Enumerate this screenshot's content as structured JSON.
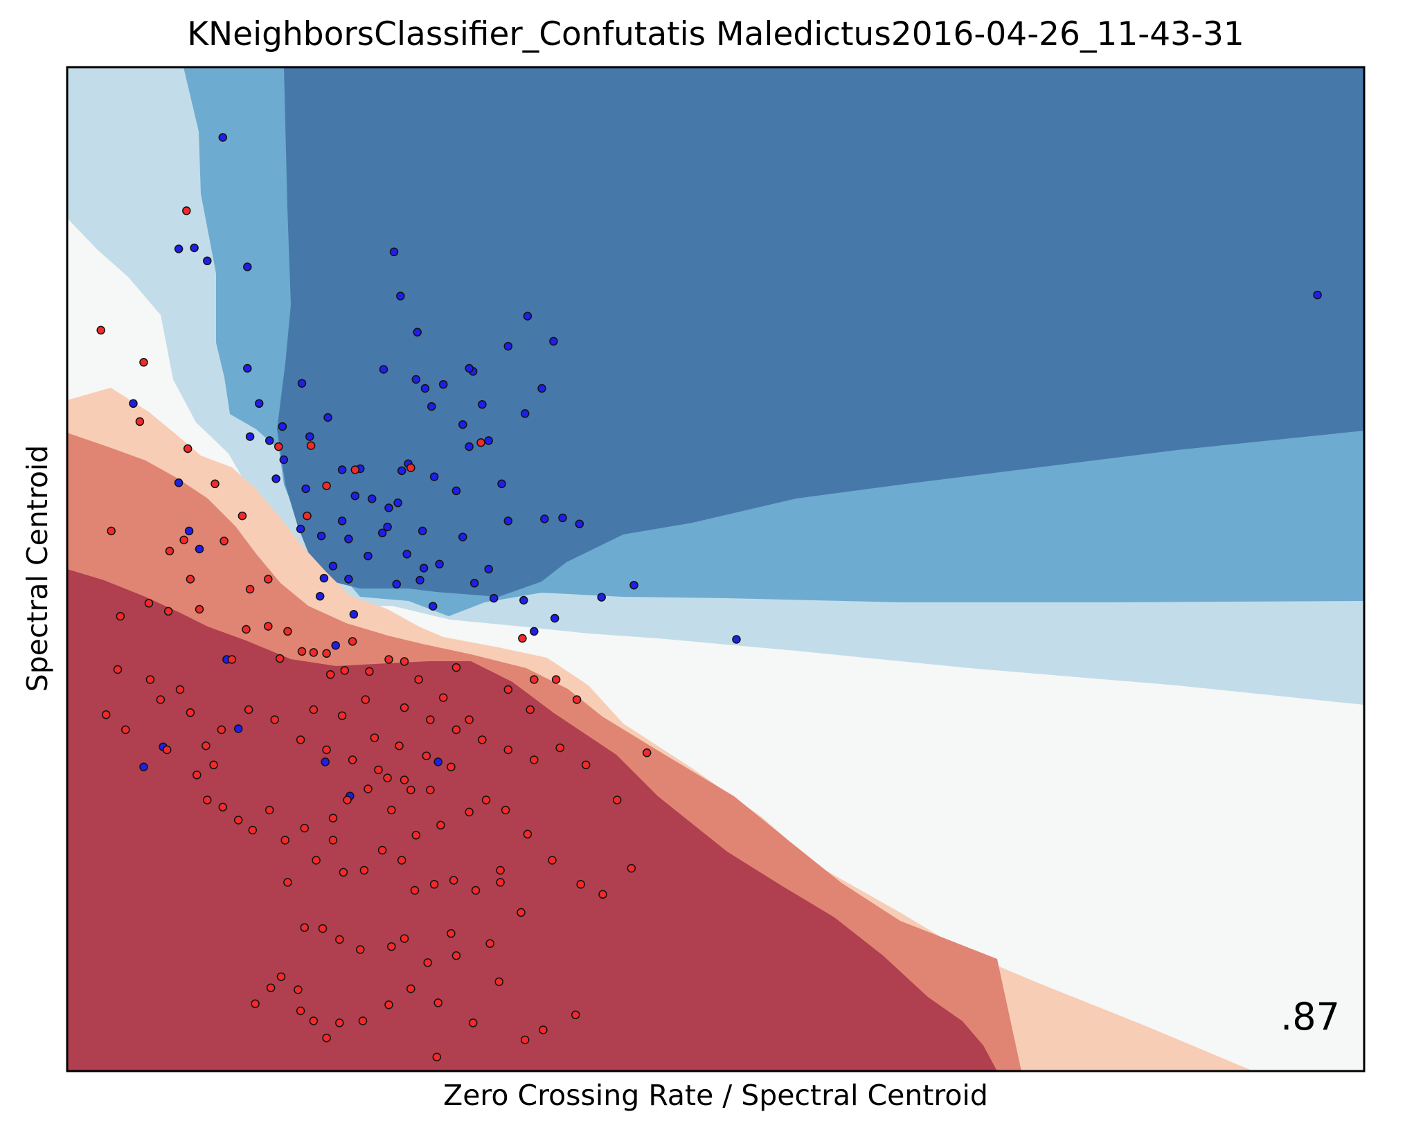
{
  "chart_data": {
    "type": "scatter",
    "title": "KNeighborsClassifier_Confutatis Maledictus2016-04-26_11-43-31",
    "xlabel": "Zero Crossing Rate / Spectral Centroid",
    "ylabel": "Spectral Centroid",
    "score_label": ".87",
    "xlim": [
      0,
      1
    ],
    "ylim": [
      0,
      1
    ],
    "grid": false,
    "ticks_shown": false,
    "background": "decision-surface",
    "colors": {
      "blue_dark": "#4679aa",
      "blue_mid": "#6eabd0",
      "blue_light": "#c2dde9",
      "neutral": "#f6f7f7",
      "red_light": "#f8cdb6",
      "red_mid": "#e08573",
      "red_dark": "#b03f50",
      "point_blue": "#1f1fe8",
      "point_red": "#f22a2a"
    },
    "series": [
      {
        "color": "blue",
        "points": [
          [
            0.12,
            0.93
          ],
          [
            0.086,
            0.819
          ],
          [
            0.098,
            0.82
          ],
          [
            0.108,
            0.807
          ],
          [
            0.139,
            0.801
          ],
          [
            0.252,
            0.816
          ],
          [
            0.257,
            0.772
          ],
          [
            0.181,
            0.685
          ],
          [
            0.148,
            0.665
          ],
          [
            0.139,
            0.7
          ],
          [
            0.141,
            0.632
          ],
          [
            0.051,
            0.665
          ],
          [
            0.166,
            0.642
          ],
          [
            0.187,
            0.632
          ],
          [
            0.201,
            0.651
          ],
          [
            0.244,
            0.699
          ],
          [
            0.269,
            0.689
          ],
          [
            0.29,
            0.684
          ],
          [
            0.276,
            0.68
          ],
          [
            0.313,
            0.697
          ],
          [
            0.27,
            0.736
          ],
          [
            0.355,
            0.752
          ],
          [
            0.34,
            0.722
          ],
          [
            0.31,
            0.7
          ],
          [
            0.375,
            0.727
          ],
          [
            0.32,
            0.664
          ],
          [
            0.305,
            0.644
          ],
          [
            0.353,
            0.655
          ],
          [
            0.366,
            0.68
          ],
          [
            0.281,
            0.662
          ],
          [
            0.263,
            0.605
          ],
          [
            0.235,
            0.57
          ],
          [
            0.212,
            0.599
          ],
          [
            0.184,
            0.58
          ],
          [
            0.161,
            0.59
          ],
          [
            0.18,
            0.54
          ],
          [
            0.212,
            0.548
          ],
          [
            0.258,
            0.598
          ],
          [
            0.31,
            0.622
          ],
          [
            0.325,
            0.628
          ],
          [
            0.335,
            0.585
          ],
          [
            0.3,
            0.578
          ],
          [
            0.283,
            0.592
          ],
          [
            0.247,
            0.542
          ],
          [
            0.255,
            0.566
          ],
          [
            0.222,
            0.573
          ],
          [
            0.196,
            0.533
          ],
          [
            0.217,
            0.53
          ],
          [
            0.243,
            0.536
          ],
          [
            0.274,
            0.538
          ],
          [
            0.305,
            0.532
          ],
          [
            0.34,
            0.548
          ],
          [
            0.368,
            0.55
          ],
          [
            0.382,
            0.551
          ],
          [
            0.395,
            0.545
          ],
          [
            0.275,
            0.501
          ],
          [
            0.195,
            0.473
          ],
          [
            0.198,
            0.491
          ],
          [
            0.205,
            0.503
          ],
          [
            0.217,
            0.49
          ],
          [
            0.254,
            0.485
          ],
          [
            0.272,
            0.489
          ],
          [
            0.314,
            0.486
          ],
          [
            0.329,
            0.471
          ],
          [
            0.352,
            0.469
          ],
          [
            0.376,
            0.451
          ],
          [
            0.36,
            0.438
          ],
          [
            0.412,
            0.472
          ],
          [
            0.437,
            0.484
          ],
          [
            0.516,
            0.43
          ],
          [
            0.102,
            0.52
          ],
          [
            0.094,
            0.538
          ],
          [
            0.086,
            0.586
          ],
          [
            0.221,
            0.455
          ],
          [
            0.132,
            0.341
          ],
          [
            0.123,
            0.41
          ],
          [
            0.074,
            0.323
          ],
          [
            0.059,
            0.303
          ],
          [
            0.218,
            0.274
          ],
          [
            0.199,
            0.308
          ],
          [
            0.286,
            0.308
          ],
          [
            0.964,
            0.773
          ],
          [
            0.156,
            0.628
          ],
          [
            0.167,
            0.609
          ],
          [
            0.226,
            0.6
          ],
          [
            0.248,
            0.561
          ],
          [
            0.232,
            0.513
          ],
          [
            0.262,
            0.515
          ],
          [
            0.287,
            0.505
          ],
          [
            0.325,
            0.5
          ],
          [
            0.282,
            0.463
          ],
          [
            0.207,
            0.424
          ]
        ]
      },
      {
        "color": "red",
        "points": [
          [
            0.092,
            0.857
          ],
          [
            0.026,
            0.738
          ],
          [
            0.056,
            0.647
          ],
          [
            0.034,
            0.538
          ],
          [
            0.079,
            0.518
          ],
          [
            0.09,
            0.529
          ],
          [
            0.095,
            0.49
          ],
          [
            0.127,
            0.41
          ],
          [
            0.164,
            0.411
          ],
          [
            0.181,
            0.418
          ],
          [
            0.2,
            0.416
          ],
          [
            0.22,
            0.428
          ],
          [
            0.26,
            0.408
          ],
          [
            0.3,
            0.402
          ],
          [
            0.351,
            0.431
          ],
          [
            0.36,
            0.39
          ],
          [
            0.039,
            0.4
          ],
          [
            0.041,
            0.453
          ],
          [
            0.063,
            0.466
          ],
          [
            0.078,
            0.458
          ],
          [
            0.102,
            0.46
          ],
          [
            0.138,
            0.44
          ],
          [
            0.155,
            0.443
          ],
          [
            0.17,
            0.438
          ],
          [
            0.19,
            0.417
          ],
          [
            0.203,
            0.395
          ],
          [
            0.214,
            0.399
          ],
          [
            0.233,
            0.398
          ],
          [
            0.248,
            0.41
          ],
          [
            0.271,
            0.39
          ],
          [
            0.29,
            0.372
          ],
          [
            0.31,
            0.35
          ],
          [
            0.34,
            0.38
          ],
          [
            0.357,
            0.36
          ],
          [
            0.377,
            0.39
          ],
          [
            0.393,
            0.37
          ],
          [
            0.03,
            0.355
          ],
          [
            0.045,
            0.34
          ],
          [
            0.064,
            0.39
          ],
          [
            0.072,
            0.37
          ],
          [
            0.087,
            0.38
          ],
          [
            0.095,
            0.357
          ],
          [
            0.107,
            0.324
          ],
          [
            0.119,
            0.34
          ],
          [
            0.14,
            0.36
          ],
          [
            0.16,
            0.35
          ],
          [
            0.18,
            0.33
          ],
          [
            0.2,
            0.32
          ],
          [
            0.22,
            0.31
          ],
          [
            0.24,
            0.3
          ],
          [
            0.26,
            0.29
          ],
          [
            0.28,
            0.28
          ],
          [
            0.3,
            0.34
          ],
          [
            0.32,
            0.33
          ],
          [
            0.34,
            0.32
          ],
          [
            0.36,
            0.31
          ],
          [
            0.38,
            0.322
          ],
          [
            0.4,
            0.305
          ],
          [
            0.424,
            0.27
          ],
          [
            0.447,
            0.317
          ],
          [
            0.077,
            0.32
          ],
          [
            0.1,
            0.295
          ],
          [
            0.113,
            0.305
          ],
          [
            0.108,
            0.27
          ],
          [
            0.12,
            0.263
          ],
          [
            0.132,
            0.25
          ],
          [
            0.143,
            0.24
          ],
          [
            0.156,
            0.26
          ],
          [
            0.168,
            0.23
          ],
          [
            0.183,
            0.242
          ],
          [
            0.192,
            0.21
          ],
          [
            0.205,
            0.23
          ],
          [
            0.213,
            0.198
          ],
          [
            0.229,
            0.2
          ],
          [
            0.243,
            0.22
          ],
          [
            0.258,
            0.21
          ],
          [
            0.268,
            0.18
          ],
          [
            0.283,
            0.186
          ],
          [
            0.298,
            0.19
          ],
          [
            0.315,
            0.18
          ],
          [
            0.334,
            0.2
          ],
          [
            0.355,
            0.236
          ],
          [
            0.374,
            0.21
          ],
          [
            0.396,
            0.186
          ],
          [
            0.413,
            0.176
          ],
          [
            0.435,
            0.202
          ],
          [
            0.17,
            0.188
          ],
          [
            0.183,
            0.143
          ],
          [
            0.197,
            0.142
          ],
          [
            0.21,
            0.131
          ],
          [
            0.226,
            0.121
          ],
          [
            0.25,
            0.124
          ],
          [
            0.26,
            0.132
          ],
          [
            0.278,
            0.108
          ],
          [
            0.3,
            0.115
          ],
          [
            0.326,
            0.127
          ],
          [
            0.35,
            0.158
          ],
          [
            0.296,
            0.137
          ],
          [
            0.334,
            0.188
          ],
          [
            0.178,
            0.081
          ],
          [
            0.165,
            0.094
          ],
          [
            0.157,
            0.083
          ],
          [
            0.145,
            0.067
          ],
          [
            0.18,
            0.06
          ],
          [
            0.19,
            0.05
          ],
          [
            0.2,
            0.033
          ],
          [
            0.21,
            0.048
          ],
          [
            0.228,
            0.05
          ],
          [
            0.248,
            0.066
          ],
          [
            0.265,
            0.082
          ],
          [
            0.286,
            0.068
          ],
          [
            0.313,
            0.048
          ],
          [
            0.353,
            0.031
          ],
          [
            0.333,
            0.089
          ],
          [
            0.367,
            0.041
          ],
          [
            0.392,
            0.056
          ],
          [
            0.285,
            0.014
          ],
          [
            0.205,
            0.252
          ],
          [
            0.216,
            0.27
          ],
          [
            0.232,
            0.281
          ],
          [
            0.247,
            0.292
          ],
          [
            0.265,
            0.28
          ],
          [
            0.237,
            0.332
          ],
          [
            0.256,
            0.324
          ],
          [
            0.277,
            0.314
          ],
          [
            0.296,
            0.303
          ],
          [
            0.31,
            0.258
          ],
          [
            0.323,
            0.27
          ],
          [
            0.338,
            0.26
          ],
          [
            0.269,
            0.235
          ],
          [
            0.288,
            0.245
          ],
          [
            0.25,
            0.26
          ],
          [
            0.19,
            0.36
          ],
          [
            0.212,
            0.354
          ],
          [
            0.23,
            0.37
          ],
          [
            0.26,
            0.362
          ],
          [
            0.28,
            0.35
          ],
          [
            0.155,
            0.49
          ],
          [
            0.141,
            0.48
          ],
          [
            0.121,
            0.528
          ],
          [
            0.135,
            0.553
          ],
          [
            0.114,
            0.585
          ],
          [
            0.163,
            0.622
          ],
          [
            0.188,
            0.623
          ],
          [
            0.222,
            0.599
          ],
          [
            0.319,
            0.626
          ],
          [
            0.265,
            0.601
          ],
          [
            0.2,
            0.583
          ],
          [
            0.185,
            0.553
          ],
          [
            0.093,
            0.62
          ],
          [
            0.059,
            0.706
          ]
        ]
      }
    ]
  }
}
